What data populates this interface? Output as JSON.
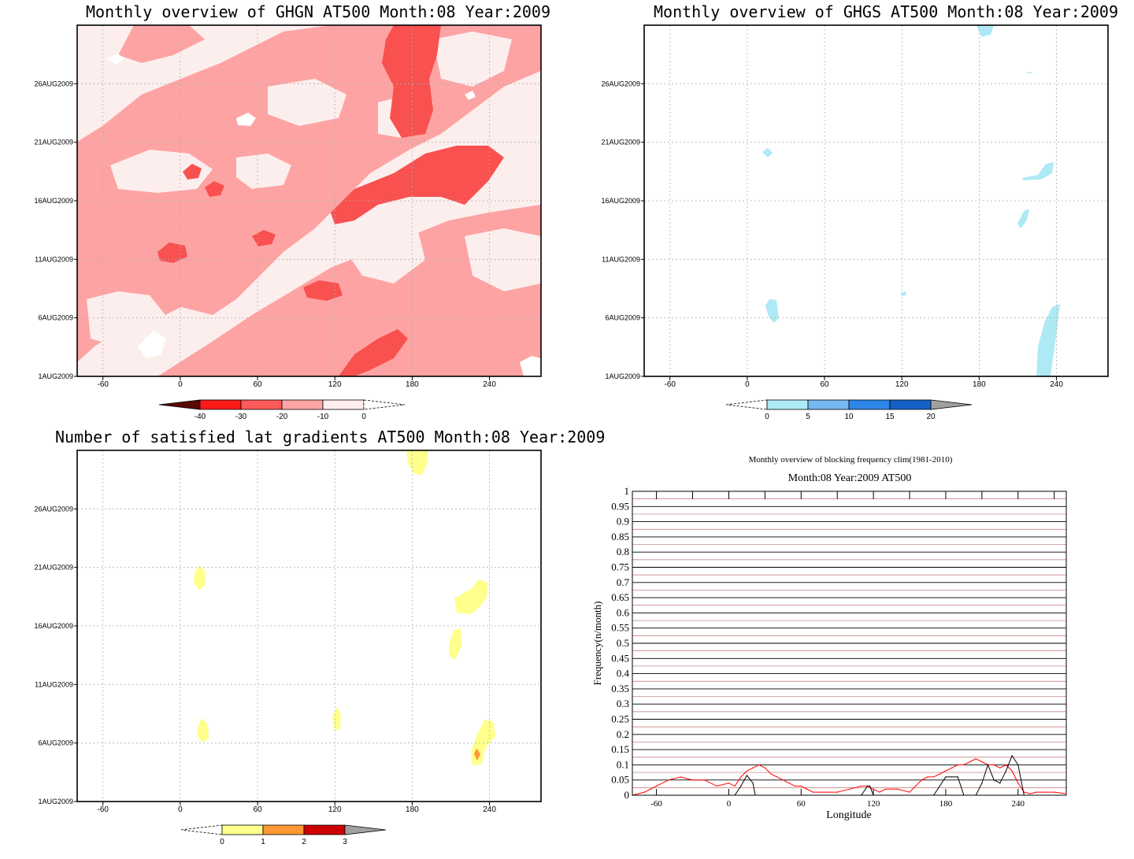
{
  "chart_data": [
    {
      "type": "heatmap",
      "title": "Monthly overview of GHGN AT500 Month:08 Year:2009",
      "x_ticks": [
        "-60",
        "0",
        "60",
        "120",
        "180",
        "240"
      ],
      "x_tick_values": [
        -60,
        0,
        60,
        120,
        180,
        240
      ],
      "xlim": [
        -80,
        280
      ],
      "y_ticks": [
        "1AUG2009",
        "6AUG2009",
        "11AUG2009",
        "16AUG2009",
        "21AUG2009",
        "26AUG2009"
      ],
      "y_tick_values": [
        1,
        6,
        11,
        16,
        21,
        26
      ],
      "ylim": [
        1,
        31
      ],
      "grid": true,
      "colorbar": {
        "labels": [
          "-40",
          "-30",
          "-20",
          "-10",
          "0"
        ],
        "colors": [
          "#5a0a05",
          "#ff1a1a",
          "#ff5a5a",
          "#ffa5a5",
          "#ffeded"
        ],
        "open_end_color": "#ffffff"
      },
      "background_color": "#fdeeee"
    },
    {
      "type": "heatmap",
      "title": "Monthly overview of GHGS AT500 Month:08 Year:2009",
      "x_ticks": [
        "-60",
        "0",
        "60",
        "120",
        "180",
        "240"
      ],
      "x_tick_values": [
        -60,
        0,
        60,
        120,
        180,
        240
      ],
      "xlim": [
        -80,
        280
      ],
      "y_ticks": [
        "1AUG2009",
        "6AUG2009",
        "11AUG2009",
        "16AUG2009",
        "21AUG2009",
        "26AUG2009"
      ],
      "y_tick_values": [
        1,
        6,
        11,
        16,
        21,
        26
      ],
      "ylim": [
        1,
        31
      ],
      "grid": true,
      "colorbar": {
        "labels": [
          "0",
          "5",
          "10",
          "15",
          "20"
        ],
        "colors": [
          "#ffffff",
          "#aeeaf5",
          "#78b8f0",
          "#2e86e8",
          "#1560c8"
        ],
        "open_end_color": "#a0a0a0"
      }
    },
    {
      "type": "heatmap",
      "title": "Number of satisfied lat gradients AT500 Month:08 Year:2009",
      "x_ticks": [
        "-60",
        "0",
        "60",
        "120",
        "180",
        "240"
      ],
      "x_tick_values": [
        -60,
        0,
        60,
        120,
        180,
        240
      ],
      "xlim": [
        -80,
        280
      ],
      "y_ticks": [
        "1AUG2009",
        "6AUG2009",
        "11AUG2009",
        "16AUG2009",
        "21AUG2009",
        "26AUG2009"
      ],
      "y_tick_values": [
        1,
        6,
        11,
        16,
        21,
        26
      ],
      "ylim": [
        1,
        31
      ],
      "grid": true,
      "colorbar": {
        "labels": [
          "0",
          "1",
          "2",
          "3"
        ],
        "colors": [
          "#ffffff",
          "#ffff8c",
          "#ff9933",
          "#cc0000"
        ],
        "open_end_color": "#a0a0a0"
      }
    },
    {
      "type": "line",
      "title": "Month:08 Year:2009  AT500",
      "subtitle": "Monthly overview of blocking frequency clim(1981-2010)",
      "xlabel": "Longitude",
      "ylabel": "Frequency(n/month)",
      "xlim": [
        -80,
        280
      ],
      "ylim": [
        0,
        1
      ],
      "x_ticks": [
        "-60",
        "0",
        "60",
        "120",
        "180",
        "240"
      ],
      "x_tick_values": [
        -60,
        0,
        60,
        120,
        180,
        240
      ],
      "y_ticks": [
        "0",
        "0.05",
        "0.1",
        "0.15",
        "0.2",
        "0.25",
        "0.3",
        "0.35",
        "0.4",
        "0.45",
        "0.5",
        "0.55",
        "0.6",
        "0.65",
        "0.7",
        "0.75",
        "0.8",
        "0.85",
        "0.9",
        "0.95",
        "1"
      ],
      "series": [
        {
          "color": "#ff0000",
          "x": [
            -80,
            -70,
            -60,
            -50,
            -40,
            -30,
            -20,
            -10,
            0,
            5,
            10,
            15,
            20,
            25,
            30,
            35,
            40,
            45,
            50,
            55,
            60,
            65,
            70,
            75,
            80,
            90,
            100,
            110,
            115,
            120,
            125,
            130,
            140,
            150,
            155,
            160,
            165,
            170,
            175,
            180,
            185,
            190,
            195,
            200,
            205,
            210,
            215,
            220,
            225,
            230,
            235,
            240,
            245,
            250,
            255,
            260,
            270,
            280
          ],
          "y": [
            0.0,
            0.01,
            0.03,
            0.05,
            0.06,
            0.05,
            0.05,
            0.03,
            0.04,
            0.03,
            0.06,
            0.08,
            0.09,
            0.1,
            0.09,
            0.07,
            0.06,
            0.05,
            0.04,
            0.03,
            0.03,
            0.02,
            0.01,
            0.01,
            0.01,
            0.01,
            0.02,
            0.03,
            0.03,
            0.02,
            0.01,
            0.02,
            0.02,
            0.01,
            0.03,
            0.05,
            0.06,
            0.06,
            0.07,
            0.08,
            0.09,
            0.1,
            0.1,
            0.11,
            0.12,
            0.11,
            0.1,
            0.1,
            0.09,
            0.1,
            0.08,
            0.04,
            0.01,
            0.005,
            0.01,
            0.01,
            0.01,
            0.005
          ]
        },
        {
          "color": "#000000",
          "x": [
            -80,
            5,
            10,
            15,
            20,
            22,
            25,
            110,
            115,
            117,
            120,
            170,
            175,
            180,
            185,
            190,
            195,
            205,
            210,
            215,
            220,
            225,
            230,
            235,
            240,
            245,
            280
          ],
          "y": [
            0,
            0,
            0.03,
            0.065,
            0.04,
            0.0,
            0,
            0,
            0.03,
            0.03,
            0,
            0,
            0.03,
            0.06,
            0.06,
            0.06,
            0,
            0,
            0.04,
            0.1,
            0.05,
            0.04,
            0.08,
            0.13,
            0.1,
            0,
            0
          ]
        }
      ]
    }
  ]
}
